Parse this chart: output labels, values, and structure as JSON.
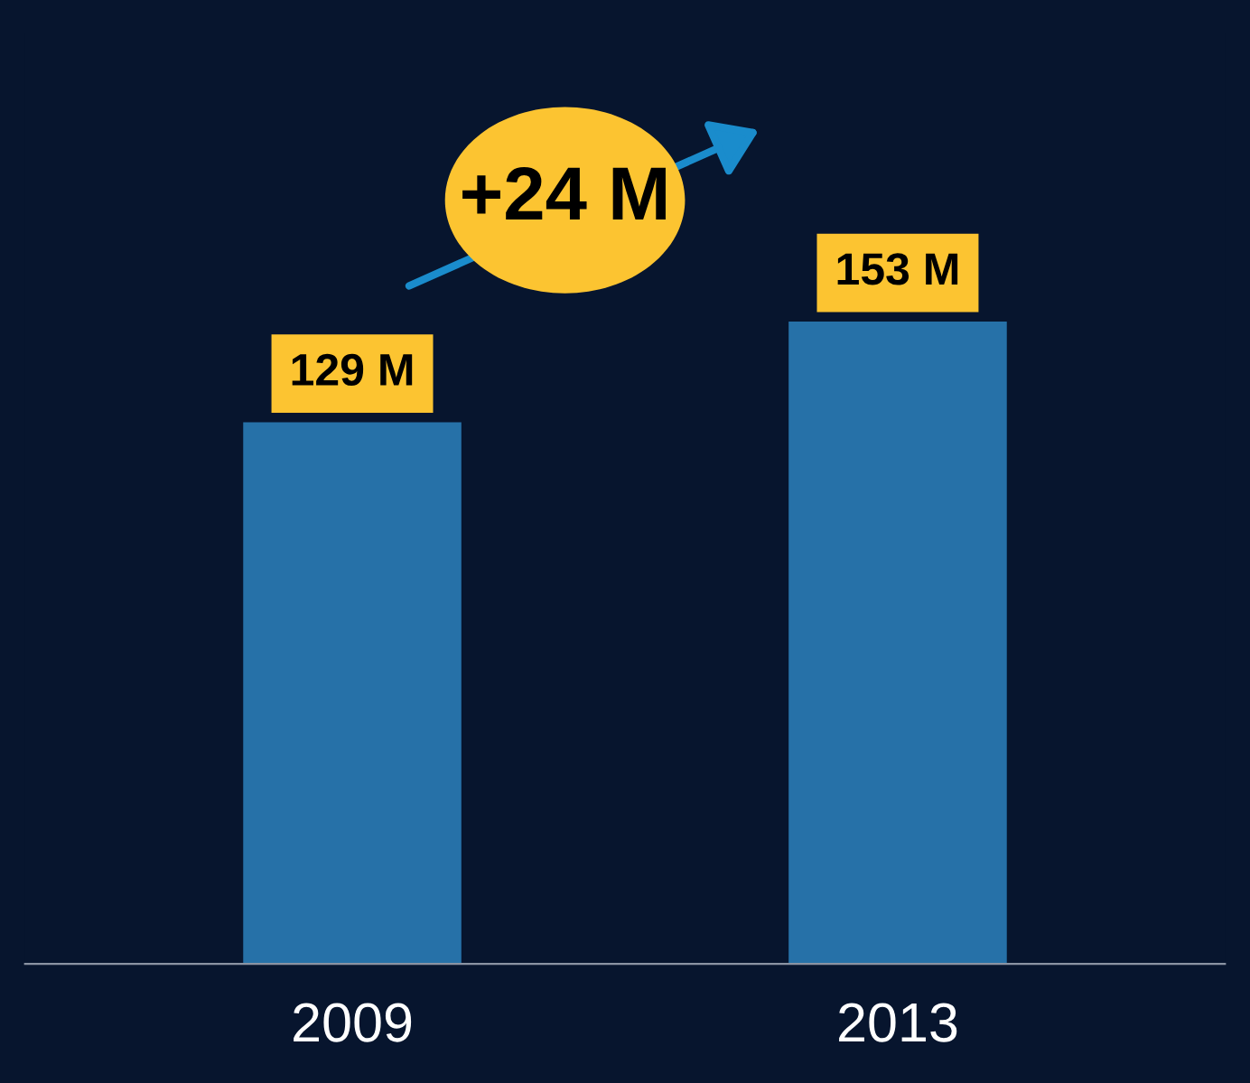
{
  "chart_data": {
    "type": "bar",
    "categories": [
      "2009",
      "2013"
    ],
    "values": [
      129,
      153
    ],
    "color": "#2671a8",
    "value_labels": [
      "129 M",
      "153 M"
    ],
    "annotations": [
      "+24 M"
    ]
  }
}
